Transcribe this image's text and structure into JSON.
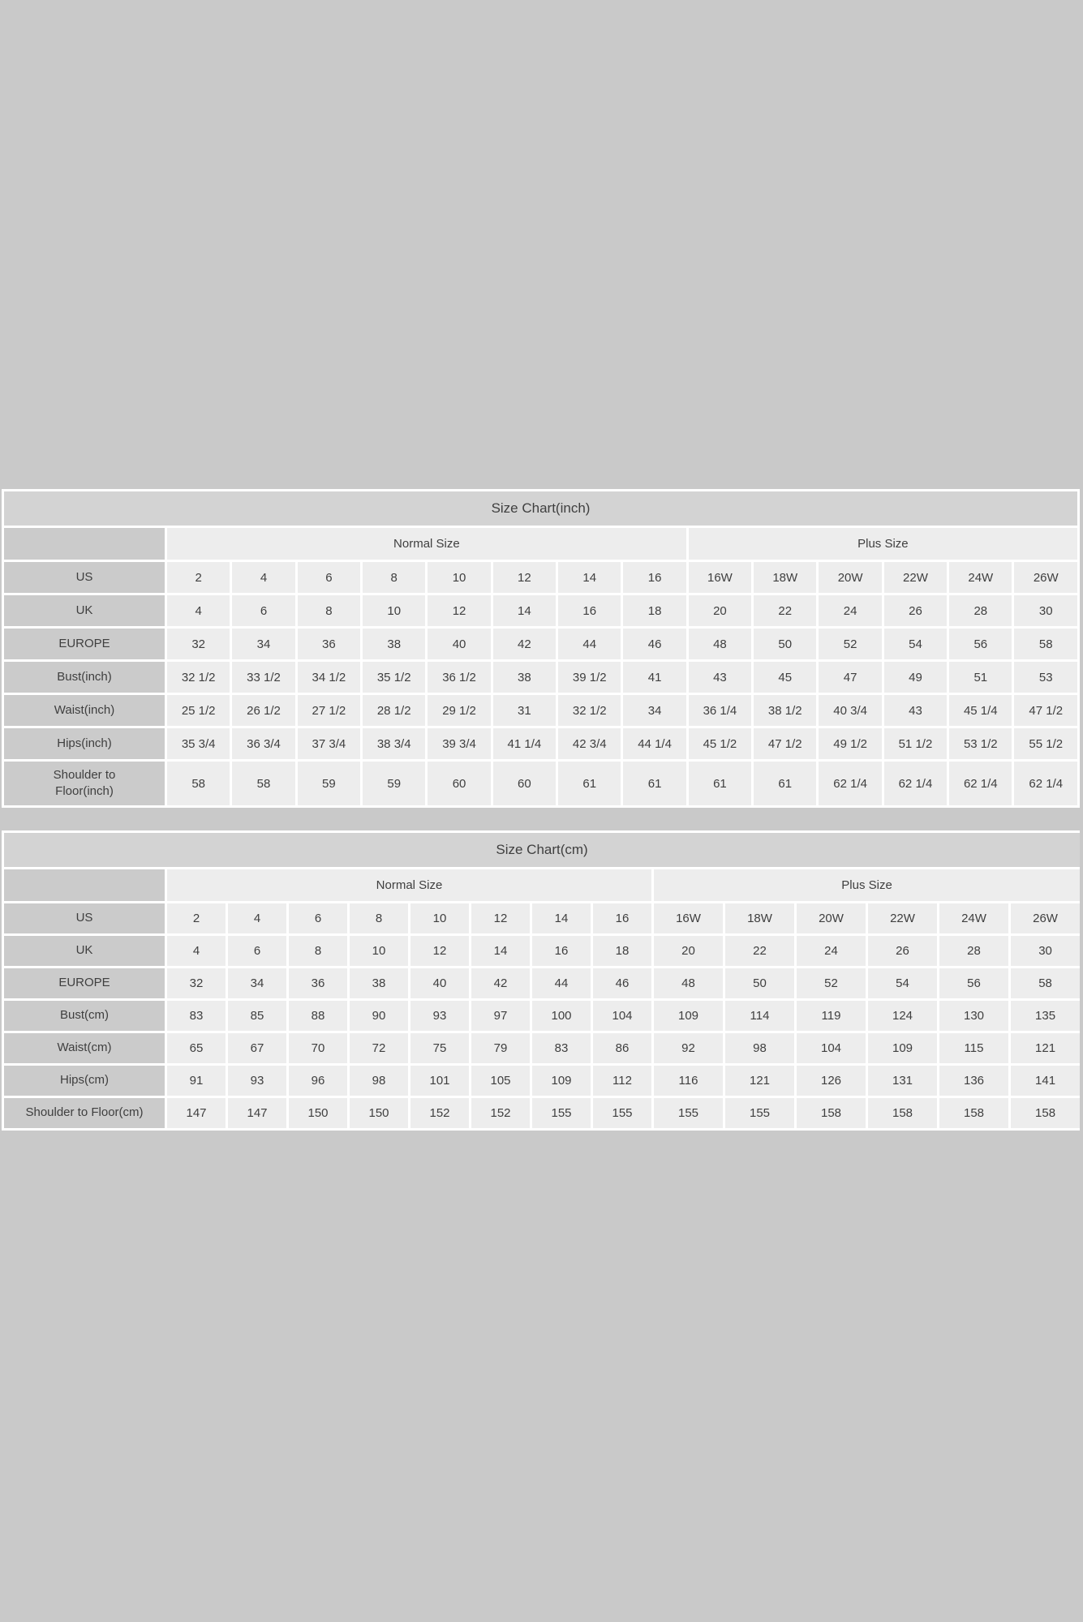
{
  "page": {
    "background_color": "#c9c9c9",
    "panel_color": "#ffffff",
    "title_bar_color": "#d3d3d3",
    "label_cell_color": "#cbcbcb",
    "value_cell_color": "#ededed",
    "text_color": "#3f3f3f"
  },
  "chart_data": [
    {
      "type": "table",
      "title": "Size Chart(inch)",
      "col_groups": [
        {
          "label": "Normal Size",
          "span": 8
        },
        {
          "label": "Plus Size",
          "span": 6
        }
      ],
      "rows": [
        {
          "label_lines": [
            "US"
          ],
          "values": [
            "2",
            "4",
            "6",
            "8",
            "10",
            "12",
            "14",
            "16",
            "16W",
            "18W",
            "20W",
            "22W",
            "24W",
            "26W"
          ]
        },
        {
          "label_lines": [
            "UK"
          ],
          "values": [
            "4",
            "6",
            "8",
            "10",
            "12",
            "14",
            "16",
            "18",
            "20",
            "22",
            "24",
            "26",
            "28",
            "30"
          ]
        },
        {
          "label_lines": [
            "EUROPE"
          ],
          "values": [
            "32",
            "34",
            "36",
            "38",
            "40",
            "42",
            "44",
            "46",
            "48",
            "50",
            "52",
            "54",
            "56",
            "58"
          ]
        },
        {
          "label_lines": [
            "Bust(inch)"
          ],
          "values": [
            "32 1/2",
            "33 1/2",
            "34 1/2",
            "35 1/2",
            "36 1/2",
            "38",
            "39 1/2",
            "41",
            "43",
            "45",
            "47",
            "49",
            "51",
            "53"
          ]
        },
        {
          "label_lines": [
            "Waist(inch)"
          ],
          "values": [
            "25 1/2",
            "26 1/2",
            "27 1/2",
            "28 1/2",
            "29 1/2",
            "31",
            "32 1/2",
            "34",
            "36 1/4",
            "38 1/2",
            "40 3/4",
            "43",
            "45 1/4",
            "47 1/2"
          ]
        },
        {
          "label_lines": [
            "Hips(inch)"
          ],
          "values": [
            "35 3/4",
            "36 3/4",
            "37 3/4",
            "38 3/4",
            "39 3/4",
            "41 1/4",
            "42 3/4",
            "44 1/4",
            "45 1/2",
            "47 1/2",
            "49 1/2",
            "51 1/2",
            "53 1/2",
            "55 1/2"
          ]
        },
        {
          "label_lines": [
            "Shoulder to",
            "Floor(inch)"
          ],
          "values": [
            "58",
            "58",
            "59",
            "59",
            "60",
            "60",
            "61",
            "61",
            "61",
            "61",
            "62 1/4",
            "62 1/4",
            "62 1/4",
            "62 1/4"
          ]
        }
      ]
    },
    {
      "type": "table",
      "title": "Size Chart(cm)",
      "col_groups": [
        {
          "label": "Normal Size",
          "span": 8
        },
        {
          "label": "Plus Size",
          "span": 6
        }
      ],
      "rows": [
        {
          "label_lines": [
            "US"
          ],
          "values": [
            "2",
            "4",
            "6",
            "8",
            "10",
            "12",
            "14",
            "16",
            "16W",
            "18W",
            "20W",
            "22W",
            "24W",
            "26W"
          ]
        },
        {
          "label_lines": [
            "UK"
          ],
          "values": [
            "4",
            "6",
            "8",
            "10",
            "12",
            "14",
            "16",
            "18",
            "20",
            "22",
            "24",
            "26",
            "28",
            "30"
          ]
        },
        {
          "label_lines": [
            "EUROPE"
          ],
          "values": [
            "32",
            "34",
            "36",
            "38",
            "40",
            "42",
            "44",
            "46",
            "48",
            "50",
            "52",
            "54",
            "56",
            "58"
          ]
        },
        {
          "label_lines": [
            "Bust(cm)"
          ],
          "values": [
            "83",
            "85",
            "88",
            "90",
            "93",
            "97",
            "100",
            "104",
            "109",
            "114",
            "119",
            "124",
            "130",
            "135"
          ]
        },
        {
          "label_lines": [
            "Waist(cm)"
          ],
          "values": [
            "65",
            "67",
            "70",
            "72",
            "75",
            "79",
            "83",
            "86",
            "92",
            "98",
            "104",
            "109",
            "115",
            "121"
          ]
        },
        {
          "label_lines": [
            "Hips(cm)"
          ],
          "values": [
            "91",
            "93",
            "96",
            "98",
            "101",
            "105",
            "109",
            "112",
            "116",
            "121",
            "126",
            "131",
            "136",
            "141"
          ]
        },
        {
          "label_lines": [
            "Shoulder to Floor(cm)"
          ],
          "values": [
            "147",
            "147",
            "150",
            "150",
            "152",
            "152",
            "155",
            "155",
            "155",
            "155",
            "158",
            "158",
            "158",
            "158"
          ]
        }
      ]
    }
  ]
}
